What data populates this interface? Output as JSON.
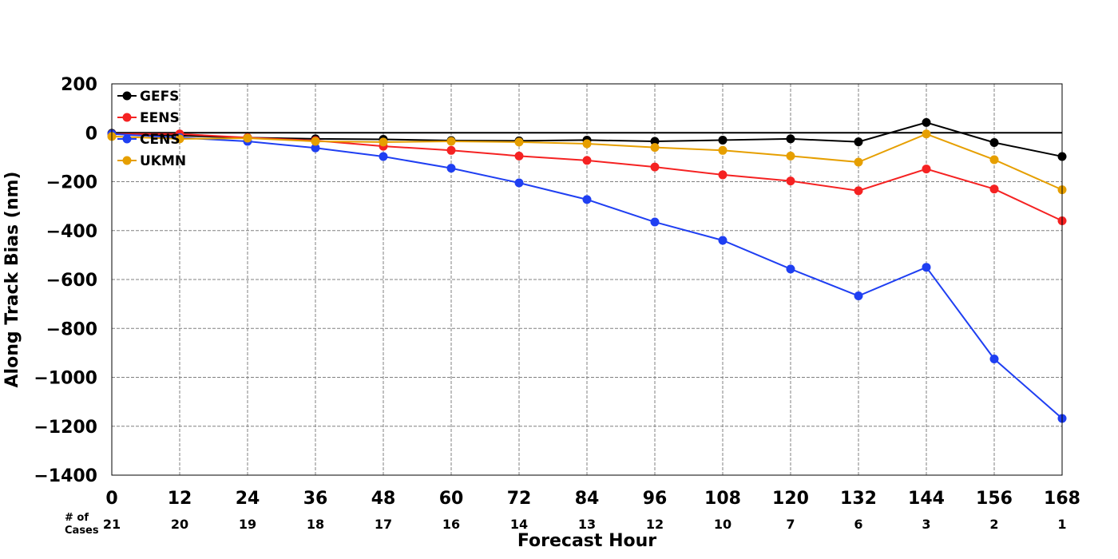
{
  "chart_data": {
    "type": "line",
    "xlabel": "Forecast Hour",
    "ylabel": "Along Track Bias (nm)",
    "x": [
      0,
      12,
      24,
      36,
      48,
      60,
      72,
      84,
      96,
      108,
      120,
      132,
      144,
      156,
      168
    ],
    "xlim": [
      0,
      168
    ],
    "ylim": [
      -1400,
      200
    ],
    "y_ticks": [
      200,
      0,
      -200,
      -400,
      -600,
      -800,
      -1000,
      -1200,
      -1400
    ],
    "y_tick_labels": [
      "200",
      "0",
      "−200",
      "−400",
      "−600",
      "−800",
      "−1000",
      "−1200",
      "−1400"
    ],
    "x_tick_labels": [
      "0",
      "12",
      "24",
      "36",
      "48",
      "60",
      "72",
      "84",
      "96",
      "108",
      "120",
      "132",
      "144",
      "156",
      "168"
    ],
    "grid": true,
    "zero_line": true,
    "legend_position": "top-left",
    "cases_title_line1": "# of",
    "cases_title_line2": "Cases",
    "cases": [
      "21",
      "20",
      "19",
      "18",
      "17",
      "16",
      "14",
      "13",
      "12",
      "10",
      "7",
      "6",
      "3",
      "2",
      "1"
    ],
    "series": [
      {
        "name": "GEFS",
        "color": "#000000",
        "values": [
          -2,
          -12,
          -20,
          -25,
          -27,
          -32,
          -33,
          -30,
          -35,
          -30,
          -25,
          -37,
          42,
          -40,
          -97
        ]
      },
      {
        "name": "EENS",
        "color": "#f52222",
        "values": [
          -5,
          -5,
          -20,
          -32,
          -55,
          -72,
          -95,
          -113,
          -140,
          -172,
          -197,
          -237,
          -148,
          -230,
          -360
        ]
      },
      {
        "name": "CENS",
        "color": "#1f3ff2",
        "values": [
          -5,
          -20,
          -35,
          -62,
          -97,
          -145,
          -205,
          -273,
          -365,
          -440,
          -557,
          -667,
          -550,
          -925,
          -1168
        ]
      },
      {
        "name": "UKMN",
        "color": "#e69f00",
        "values": [
          -15,
          -25,
          -22,
          -35,
          -38,
          -35,
          -38,
          -45,
          -60,
          -72,
          -95,
          -120,
          -5,
          -110,
          -233
        ]
      }
    ]
  }
}
